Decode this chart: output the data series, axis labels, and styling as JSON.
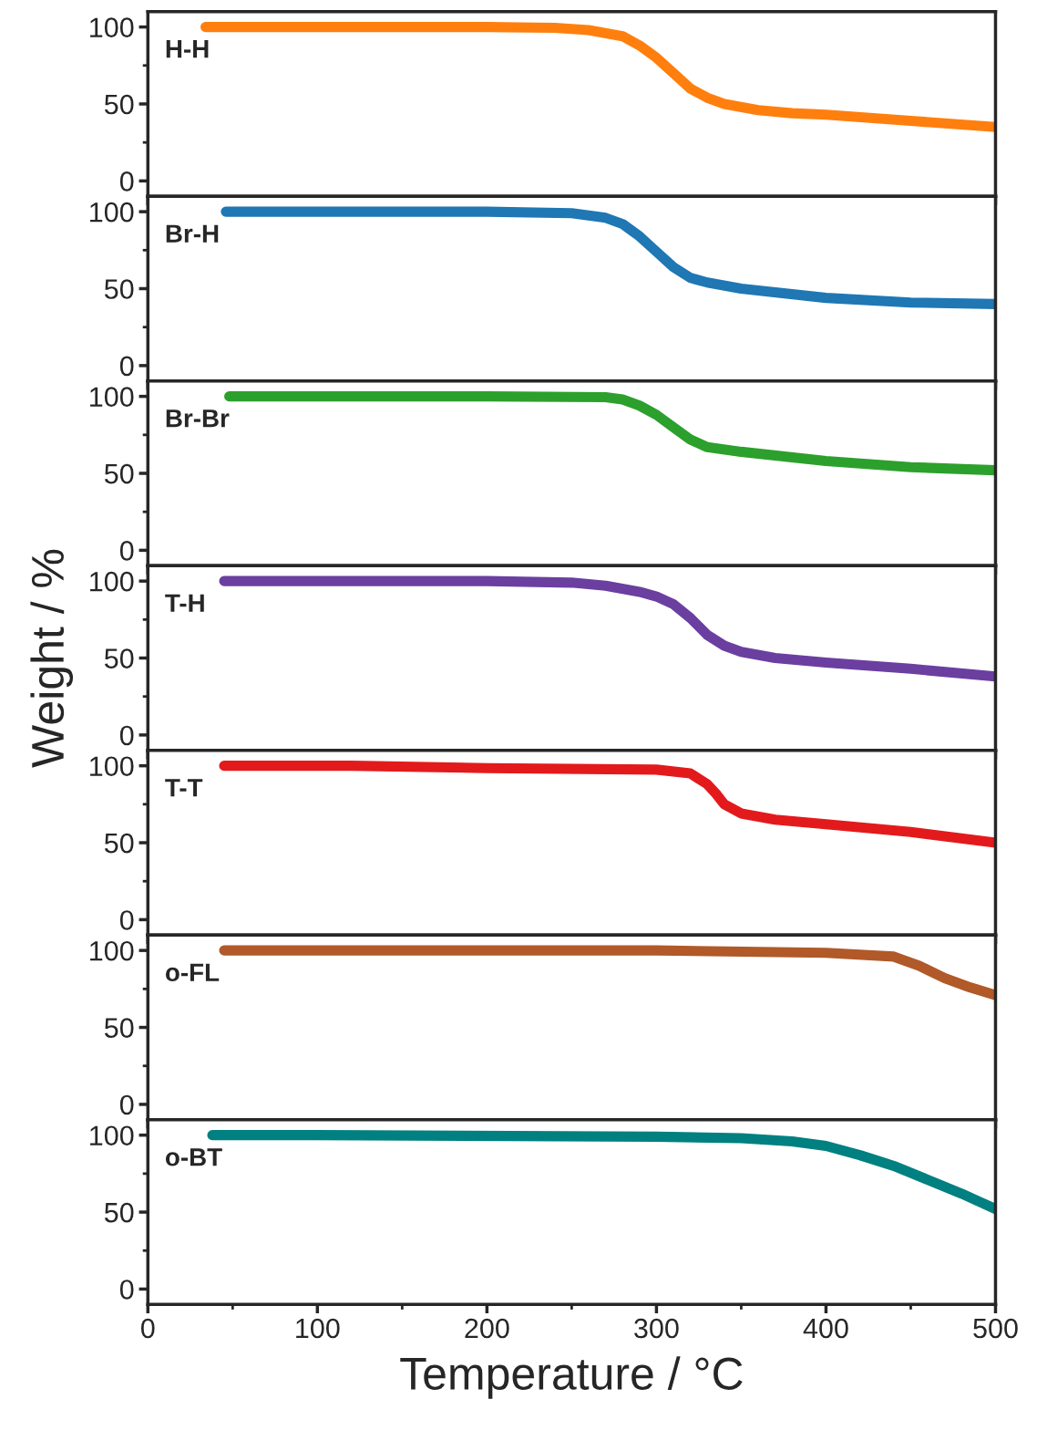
{
  "chart_data": [
    {
      "type": "line",
      "xlim": [
        0,
        500
      ],
      "xticks": [
        0,
        100,
        200,
        300,
        400,
        500
      ],
      "ylim": [
        -10,
        110
      ],
      "yticks": [
        0,
        50,
        100
      ],
      "tick_labels": "y",
      "series": [
        {
          "name": "H-H",
          "color": "#ff7f0e",
          "x": [
            34,
            100,
            200,
            240,
            260,
            280,
            290,
            300,
            310,
            320,
            330,
            340,
            360,
            380,
            400,
            450,
            500
          ],
          "values": [
            100,
            100,
            100,
            99.5,
            98,
            94,
            88,
            80,
            70,
            60,
            54,
            50,
            46,
            44,
            43,
            39,
            35
          ]
        }
      ]
    },
    {
      "type": "line",
      "xlim": [
        0,
        500
      ],
      "xticks": [
        0,
        100,
        200,
        300,
        400,
        500
      ],
      "ylim": [
        -10,
        110
      ],
      "yticks": [
        0,
        50,
        100
      ],
      "tick_labels": "y",
      "series": [
        {
          "name": "Br-H",
          "color": "#1f77b4",
          "x": [
            46,
            100,
            200,
            250,
            270,
            280,
            290,
            300,
            310,
            320,
            330,
            350,
            400,
            450,
            500
          ],
          "values": [
            100,
            100,
            100,
            99,
            96,
            92,
            84,
            74,
            64,
            57,
            54,
            50,
            44,
            41,
            40
          ]
        }
      ]
    },
    {
      "type": "line",
      "xlim": [
        0,
        500
      ],
      "xticks": [
        0,
        100,
        200,
        300,
        400,
        500
      ],
      "ylim": [
        -10,
        110
      ],
      "yticks": [
        0,
        50,
        100
      ],
      "tick_labels": "y",
      "series": [
        {
          "name": "Br-Br",
          "color": "#2ca02c",
          "x": [
            48,
            100,
            200,
            270,
            280,
            290,
            300,
            310,
            320,
            330,
            350,
            400,
            450,
            500
          ],
          "values": [
            100,
            100,
            100,
            99.5,
            98,
            94,
            88,
            80,
            72,
            67,
            64,
            58,
            54,
            52
          ]
        }
      ]
    },
    {
      "type": "line",
      "xlim": [
        0,
        500
      ],
      "xticks": [
        0,
        100,
        200,
        300,
        400,
        500
      ],
      "ylim": [
        -10,
        110
      ],
      "yticks": [
        0,
        50,
        100
      ],
      "tick_labels": "y",
      "ylabel": "Weight / %",
      "series": [
        {
          "name": "T-H",
          "color": "#6b3fa0",
          "x": [
            45,
            100,
            200,
            250,
            270,
            290,
            300,
            310,
            320,
            330,
            340,
            350,
            370,
            400,
            450,
            500
          ],
          "values": [
            100,
            100,
            100,
            99,
            97,
            93,
            90,
            85,
            76,
            65,
            58,
            54,
            50,
            47,
            43,
            38
          ]
        }
      ]
    },
    {
      "type": "line",
      "xlim": [
        0,
        500
      ],
      "xticks": [
        0,
        100,
        200,
        300,
        400,
        500
      ],
      "ylim": [
        -10,
        110
      ],
      "yticks": [
        0,
        50,
        100
      ],
      "tick_labels": "y",
      "series": [
        {
          "name": "T-T",
          "color": "#e31a1c",
          "x": [
            45,
            120,
            200,
            300,
            320,
            330,
            335,
            340,
            350,
            370,
            400,
            450,
            500
          ],
          "values": [
            100,
            100,
            98.5,
            97.5,
            95,
            88,
            82,
            75,
            69,
            65,
            62,
            57,
            50
          ]
        }
      ]
    },
    {
      "type": "line",
      "xlim": [
        0,
        500
      ],
      "xticks": [
        0,
        100,
        200,
        300,
        400,
        500
      ],
      "ylim": [
        -10,
        110
      ],
      "yticks": [
        0,
        50,
        100
      ],
      "tick_labels": "y",
      "series": [
        {
          "name": "o-FL",
          "color": "#b15928",
          "x": [
            45,
            100,
            300,
            400,
            440,
            455,
            470,
            485,
            500
          ],
          "values": [
            100,
            100,
            100,
            98.5,
            96,
            90,
            82,
            76,
            71
          ]
        }
      ]
    },
    {
      "type": "line",
      "xlim": [
        0,
        500
      ],
      "xticks": [
        0,
        100,
        200,
        300,
        400,
        500
      ],
      "ylim": [
        -10,
        110
      ],
      "yticks": [
        0,
        50,
        100
      ],
      "xlabel": "Temperature / °C",
      "series": [
        {
          "name": "o-BT",
          "color": "#008080",
          "x": [
            38,
            100,
            300,
            350,
            380,
            400,
            420,
            440,
            460,
            480,
            490,
            500
          ],
          "values": [
            100,
            100,
            99,
            98,
            96,
            93,
            87,
            80,
            71,
            62,
            57,
            52
          ]
        }
      ]
    }
  ]
}
